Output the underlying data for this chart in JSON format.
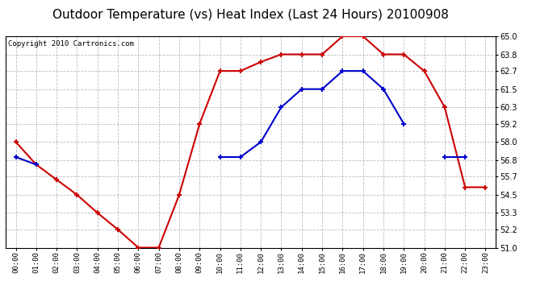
{
  "title": "Outdoor Temperature (vs) Heat Index (Last 24 Hours) 20100908",
  "copyright": "Copyright 2010 Cartronics.com",
  "x_labels": [
    "00:00",
    "01:00",
    "02:00",
    "03:00",
    "04:00",
    "05:00",
    "06:00",
    "07:00",
    "08:00",
    "09:00",
    "10:00",
    "11:00",
    "12:00",
    "13:00",
    "14:00",
    "15:00",
    "16:00",
    "17:00",
    "18:00",
    "19:00",
    "20:00",
    "21:00",
    "22:00",
    "23:00"
  ],
  "red_data": [
    58.0,
    56.5,
    55.5,
    54.5,
    53.3,
    52.2,
    51.0,
    51.0,
    54.5,
    59.2,
    62.7,
    62.7,
    63.3,
    63.8,
    63.8,
    63.8,
    65.0,
    65.0,
    63.8,
    63.8,
    62.7,
    60.3,
    55.0,
    55.0
  ],
  "blue_data": [
    57.0,
    56.5,
    null,
    null,
    null,
    null,
    null,
    null,
    null,
    null,
    57.0,
    57.0,
    58.0,
    60.3,
    61.5,
    61.5,
    62.7,
    62.7,
    61.5,
    59.2,
    null,
    57.0,
    57.0,
    null
  ],
  "ylim": [
    51.0,
    65.0
  ],
  "yticks": [
    51.0,
    52.2,
    53.3,
    54.5,
    55.7,
    56.8,
    58.0,
    59.2,
    60.3,
    61.5,
    62.7,
    63.8,
    65.0
  ],
  "red_color": "#cc0000",
  "blue_color": "#0000cc",
  "grid_color": "#bbbbbb",
  "bg_color": "#ffffff",
  "title_fontsize": 11,
  "copyright_fontsize": 6.5
}
